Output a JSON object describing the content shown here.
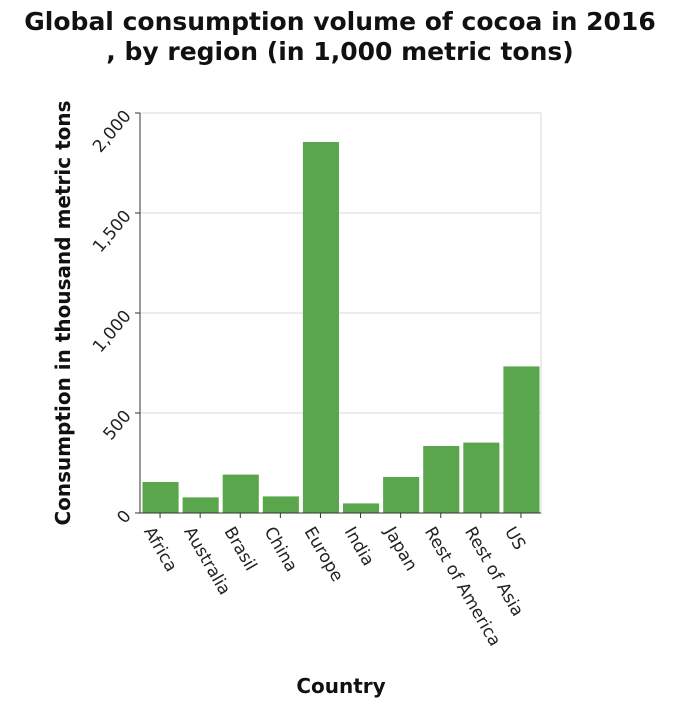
{
  "chart_data": {
    "type": "bar",
    "title_lines": [
      "Global consumption volume of cocoa in 2016",
      ", by region (in 1,000 metric tons)"
    ],
    "xlabel": "Country",
    "ylabel": "Consumption in thousand metric tons",
    "categories": [
      "Africa",
      "Australia",
      "Brasil",
      "China",
      "Europe",
      "India",
      "Japan",
      "Rest of America",
      "Rest of Asia",
      "US"
    ],
    "values": [
      155,
      78,
      192,
      83,
      1855,
      48,
      180,
      335,
      352,
      733
    ],
    "ylim": [
      0,
      2000
    ],
    "yticks": [
      0,
      500,
      1000,
      1500,
      2000
    ],
    "ytick_labels": [
      "0",
      "500",
      "1,000",
      "1,500",
      "2,000"
    ],
    "bar_color": "#5aa64d",
    "grid": true,
    "legend": "none"
  }
}
